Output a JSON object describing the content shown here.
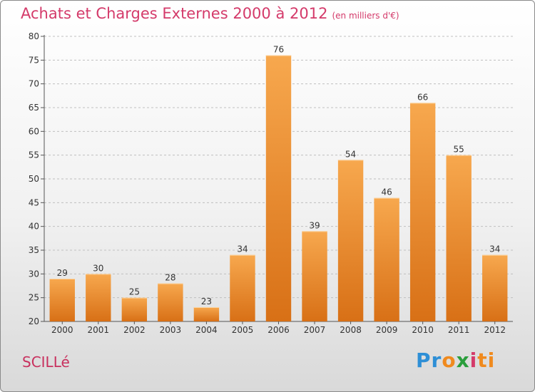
{
  "title": "Achats et Charges Externes 2000 à 2012",
  "unit_note": "(en milliers d'€)",
  "commune": "SCILLé",
  "logo": {
    "p1": "Pr",
    "p2": "o",
    "p3": "x",
    "p4": "i",
    "p5": "ti"
  },
  "colors": {
    "bar_top": "#f7a84e",
    "bar_bottom": "#d87016",
    "title": "#d43a6a",
    "grid": "#bfbfbf"
  },
  "chart_data": {
    "type": "bar",
    "categories": [
      "2000",
      "2001",
      "2002",
      "2003",
      "2004",
      "2005",
      "2006",
      "2007",
      "2008",
      "2009",
      "2010",
      "2011",
      "2012"
    ],
    "values": [
      29,
      30,
      25,
      28,
      23,
      34,
      76,
      39,
      54,
      46,
      66,
      55,
      34
    ],
    "ylim": [
      20,
      80
    ],
    "yticks": [
      20,
      25,
      30,
      35,
      40,
      45,
      50,
      55,
      60,
      65,
      70,
      75,
      80
    ],
    "grid": true,
    "data_labels": true
  }
}
